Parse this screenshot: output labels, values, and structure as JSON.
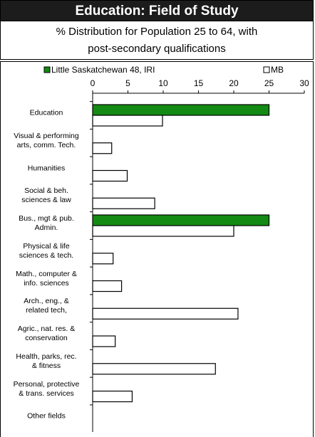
{
  "chart_data": {
    "type": "bar",
    "orientation": "horizontal",
    "title": "Education: Field of Study",
    "subtitle": "% Distribution for Population 25 to 64, with\npost-secondary qualifications",
    "categories": [
      "Education",
      "Visual & performing\narts, comm. Tech.",
      "Humanities",
      "Social & beh.\nsciences & law",
      "Bus., mgt & pub.\nAdmin.",
      "Physical & life\nsciences & tech.",
      "Math., computer &\ninfo. sciences",
      "Arch., eng., &\nrelated tech,",
      "Agric., nat. res. &\nconservation",
      "Health, parks, rec.\n& fitness",
      "Personal, protective\n& trans. services",
      "Other fields"
    ],
    "series": [
      {
        "name": "Little Saskatchewan 48, IRI",
        "color": "#138a13",
        "values": [
          25,
          0,
          0,
          0,
          25,
          0,
          0,
          0,
          0,
          0,
          0,
          0
        ]
      },
      {
        "name": "MB",
        "color": "#ffffff",
        "values": [
          9.9,
          2.7,
          4.9,
          8.8,
          20,
          2.9,
          4.1,
          20.6,
          3.2,
          17.4,
          5.6,
          0
        ]
      }
    ],
    "xlim": [
      0,
      30
    ],
    "xticks": [
      0,
      5,
      10,
      15,
      20,
      25,
      30
    ]
  }
}
